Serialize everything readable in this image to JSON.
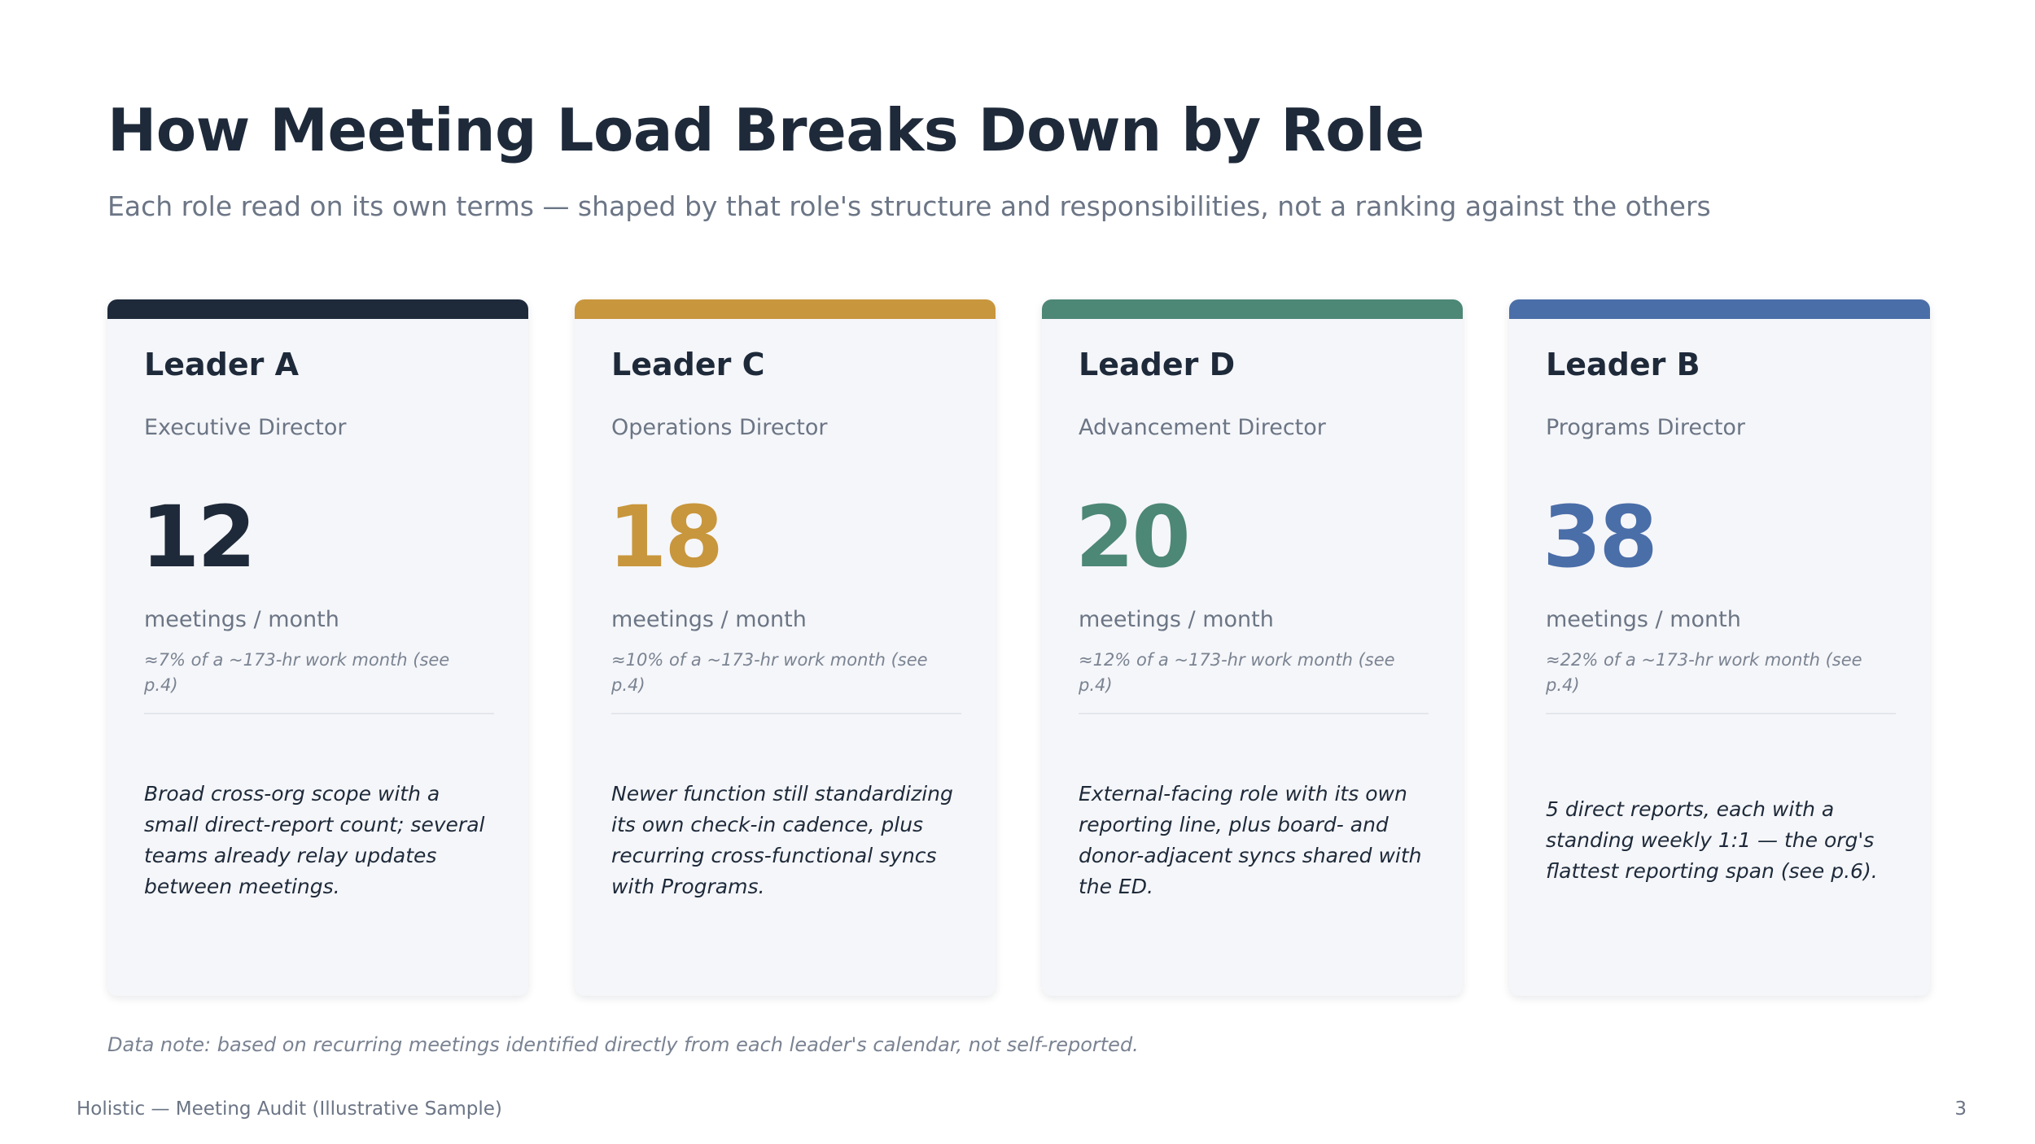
{
  "header": {
    "title": "How Meeting Load Breaks Down by Role",
    "subtitle": "Each role read on its own terms — shaped by that role's structure and responsibilities, not a ranking against the others"
  },
  "cards": [
    {
      "name": "Leader A",
      "role": "Executive Director",
      "count": "12",
      "unit": "meetings / month",
      "pct": "≈7% of a ~173-hr work month (see p.4)",
      "desc": "Broad cross-org scope with a small direct-report count; several teams already relay updates between meetings.",
      "color": "#1e2a3a"
    },
    {
      "name": "Leader C",
      "role": "Operations Director",
      "count": "18",
      "unit": "meetings / month",
      "pct": "≈10% of a ~173-hr work month (see p.4)",
      "desc": "Newer function still standardizing its own check-in cadence, plus recurring cross-functional syncs with Programs.",
      "color": "#c8963c"
    },
    {
      "name": "Leader D",
      "role": "Advancement Director",
      "count": "20",
      "unit": "meetings / month",
      "pct": "≈12% of a ~173-hr work month (see p.4)",
      "desc": "External-facing role with its own reporting line, plus board- and donor-adjacent syncs shared with the ED.",
      "color": "#4d8776"
    },
    {
      "name": "Leader B",
      "role": "Programs Director",
      "count": "38",
      "unit": "meetings / month",
      "pct": "≈22% of a ~173-hr work month (see p.4)",
      "desc": "5 direct reports, each with a standing weekly 1:1 — the org's flattest reporting span (see p.6).",
      "color": "#4a6ea8"
    }
  ],
  "data_note": "Data note: based on recurring meetings identified directly from each leader's calendar, not self-reported.",
  "footer": {
    "left": "Holistic — Meeting Audit (Illustrative Sample)",
    "page_number": "3"
  }
}
